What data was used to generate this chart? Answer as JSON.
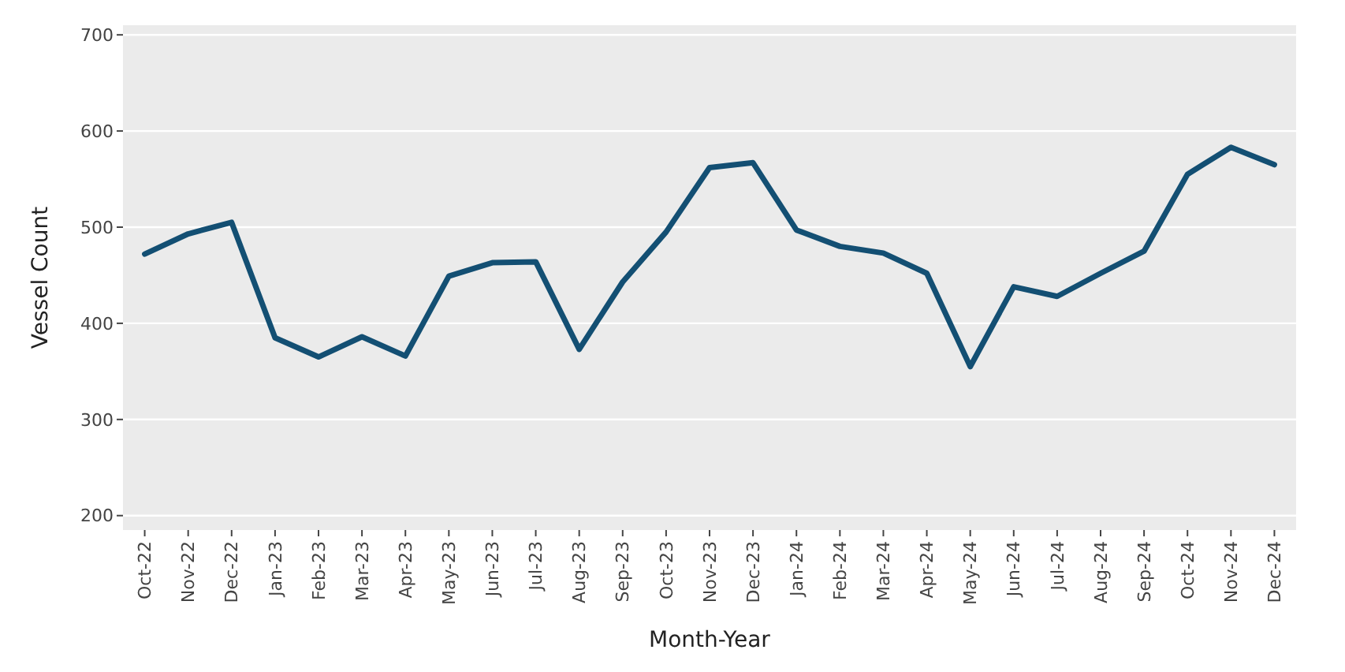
{
  "chart_data": {
    "type": "line",
    "xlabel": "Month-Year",
    "ylabel": "Vessel Count",
    "categories": [
      "Oct-22",
      "Nov-22",
      "Dec-22",
      "Jan-23",
      "Feb-23",
      "Mar-23",
      "Apr-23",
      "May-23",
      "Jun-23",
      "Jul-23",
      "Aug-23",
      "Sep-23",
      "Oct-23",
      "Nov-23",
      "Dec-23",
      "Jan-24",
      "Feb-24",
      "Mar-24",
      "Apr-24",
      "May-24",
      "Jun-24",
      "Jul-24",
      "Aug-24",
      "Sep-24",
      "Oct-24",
      "Nov-24",
      "Dec-24"
    ],
    "series": [
      {
        "color": "#134f73",
        "values": [
          472,
          493,
          505,
          385,
          365,
          386,
          366,
          449,
          463,
          464,
          373,
          443,
          495,
          562,
          567,
          497,
          480,
          473,
          452,
          355,
          438,
          428,
          452,
          475,
          555,
          583,
          565
        ]
      }
    ],
    "ylim": [
      185,
      710
    ],
    "yticks": [
      200,
      300,
      400,
      500,
      600,
      700
    ],
    "grid": "y"
  }
}
